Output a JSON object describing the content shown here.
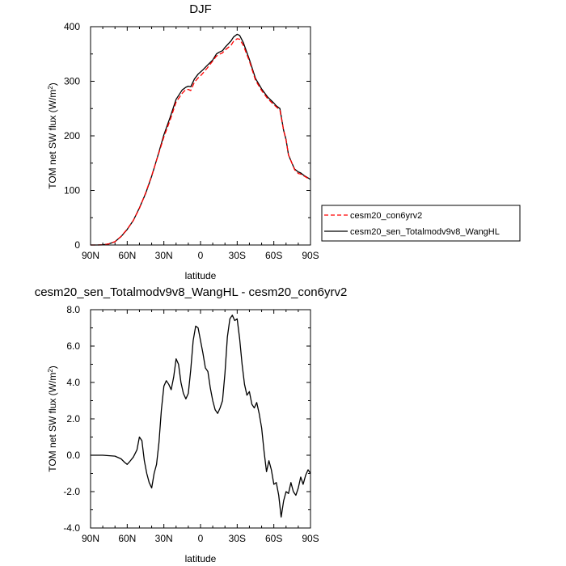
{
  "chart_data": [
    {
      "type": "line",
      "title": "DJF",
      "xlabel": "latitude",
      "ylabel": "TOM net SW flux (W/m²)",
      "ylabel_main": "TOM net SW flux (W/m",
      "ylabel_sup": "2",
      "ylabel_end": ")",
      "xlim": [
        90,
        -90
      ],
      "ylim": [
        0,
        400
      ],
      "xticks": [
        90,
        60,
        30,
        0,
        -30,
        -60,
        -90
      ],
      "xticklabels": [
        "90N",
        "60N",
        "30N",
        "0",
        "30S",
        "60S",
        "90S"
      ],
      "yticks": [
        0,
        100,
        200,
        300,
        400
      ],
      "yticklabels": [
        "0",
        "100",
        "200",
        "300",
        "400"
      ],
      "grid": false,
      "legend_position": "right-outside",
      "series": [
        {
          "name": "cesm20_con6yrv2",
          "color": "#ff0000",
          "dash": "dashed",
          "x": [
            90,
            85,
            80,
            75,
            70,
            65,
            60,
            55,
            50,
            45,
            40,
            35,
            30,
            25,
            20,
            15,
            12,
            10,
            8,
            5,
            2,
            0,
            -2,
            -5,
            -10,
            -13,
            -15,
            -18,
            -20,
            -25,
            -27,
            -30,
            -32,
            -35,
            -40,
            -45,
            -50,
            -55,
            -60,
            -62,
            -65,
            -68,
            -70,
            -72,
            -75,
            -77,
            -80,
            -82,
            -85,
            -88,
            -90
          ],
          "y": [
            0,
            0,
            0.3,
            2,
            6,
            16,
            29,
            45,
            67,
            95,
            127,
            162,
            198,
            228,
            262,
            278,
            285,
            285,
            283,
            298,
            306,
            310,
            315,
            323,
            337,
            346,
            349,
            352,
            357,
            366,
            373,
            378,
            377,
            366,
            337,
            302,
            283,
            268,
            257,
            253,
            247,
            210,
            192,
            165,
            149,
            138,
            131,
            130,
            126,
            122,
            120
          ]
        },
        {
          "name": "cesm20_sen_Totalmodv9v8_WangHL",
          "color": "#000000",
          "dash": "solid",
          "x": [
            90,
            85,
            80,
            75,
            70,
            65,
            60,
            55,
            50,
            45,
            40,
            35,
            30,
            25,
            20,
            15,
            12,
            10,
            8,
            5,
            2,
            0,
            -2,
            -5,
            -10,
            -13,
            -15,
            -18,
            -20,
            -25,
            -27,
            -30,
            -32,
            -35,
            -40,
            -45,
            -50,
            -55,
            -60,
            -62,
            -65,
            -68,
            -70,
            -72,
            -75,
            -77,
            -80,
            -82,
            -85,
            -88,
            -90
          ],
          "y": [
            0,
            0,
            0.3,
            2,
            6,
            15.5,
            28.5,
            45,
            68,
            94,
            126,
            163,
            202,
            233,
            267,
            284,
            289,
            291,
            290,
            304,
            313,
            317,
            321,
            328,
            339,
            350,
            353,
            356,
            362,
            374,
            381,
            386,
            384,
            371,
            340,
            305,
            286,
            271,
            260,
            255,
            250,
            210,
            193,
            165,
            149,
            139,
            134,
            132,
            127,
            123,
            120
          ]
        }
      ]
    },
    {
      "type": "line",
      "title": "cesm20_sen_Totalmodv9v8_WangHL - cesm20_con6yrv2",
      "xlabel": "latitude",
      "ylabel": "TOM net SW flux (W/m²)",
      "ylabel_main": "TOM net SW flux (W/m",
      "ylabel_sup": "2",
      "ylabel_end": ")",
      "xlim": [
        90,
        -90
      ],
      "ylim": [
        -4,
        8
      ],
      "xticks": [
        90,
        60,
        30,
        0,
        -30,
        -60,
        -90
      ],
      "xticklabels": [
        "90N",
        "60N",
        "30N",
        "0",
        "30S",
        "60S",
        "90S"
      ],
      "yticks": [
        -4,
        -2,
        0,
        2,
        4,
        6,
        8
      ],
      "yticklabels": [
        "-4.0",
        "-2.0",
        "0.0",
        "2.0",
        "4.0",
        "6.0",
        "8.0"
      ],
      "grid": false,
      "series": [
        {
          "color": "#000000",
          "dash": "solid",
          "x": [
            90,
            80,
            70,
            65,
            62,
            60,
            58,
            55,
            52,
            50,
            48,
            46,
            44,
            42,
            40,
            38,
            36,
            34,
            32,
            30,
            28,
            26,
            24,
            22,
            20,
            18,
            16,
            14,
            12,
            10,
            8,
            6,
            4,
            2,
            0,
            -2,
            -4,
            -6,
            -8,
            -10,
            -12,
            -14,
            -16,
            -18,
            -20,
            -22,
            -24,
            -26,
            -28,
            -30,
            -32,
            -34,
            -36,
            -38,
            -40,
            -42,
            -44,
            -46,
            -48,
            -50,
            -52,
            -54,
            -56,
            -58,
            -60,
            -62,
            -64,
            -66,
            -68,
            -70,
            -72,
            -74,
            -76,
            -78,
            -80,
            -82,
            -84,
            -86,
            -88,
            -90
          ],
          "y": [
            0,
            0,
            -0.05,
            -0.2,
            -0.4,
            -0.5,
            -0.35,
            -0.1,
            0.3,
            1.0,
            0.8,
            -0.3,
            -1.0,
            -1.5,
            -1.8,
            -1.0,
            -0.5,
            0.7,
            2.5,
            3.8,
            4.1,
            3.9,
            3.6,
            4.3,
            5.3,
            5.0,
            4.0,
            3.4,
            3.1,
            3.4,
            4.7,
            6.3,
            7.1,
            7.0,
            6.3,
            5.6,
            4.8,
            4.6,
            3.7,
            3.0,
            2.5,
            2.3,
            2.6,
            3.0,
            4.5,
            6.5,
            7.5,
            7.7,
            7.4,
            7.5,
            6.4,
            5.0,
            3.9,
            3.3,
            3.5,
            2.8,
            2.6,
            2.9,
            2.3,
            1.5,
            0.2,
            -0.9,
            -0.3,
            -0.8,
            -1.6,
            -1.5,
            -2.2,
            -3.4,
            -2.5,
            -2.0,
            -2.1,
            -1.5,
            -2.0,
            -2.2,
            -1.8,
            -1.2,
            -1.6,
            -1.1,
            -0.8,
            -1.0
          ]
        }
      ]
    }
  ]
}
